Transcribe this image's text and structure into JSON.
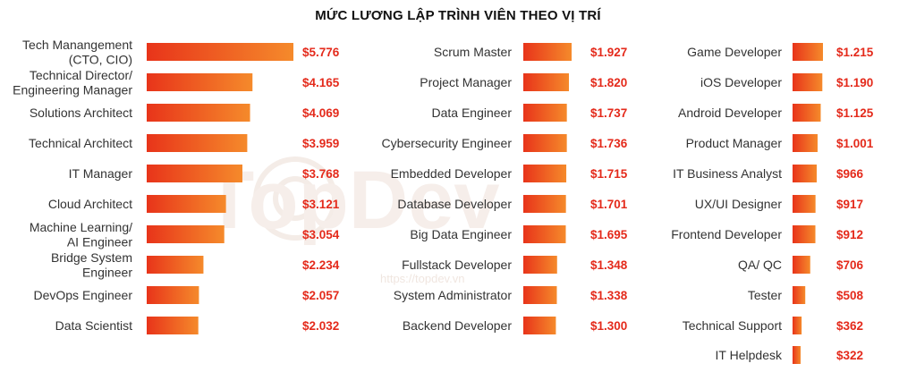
{
  "title": "MỨC LƯƠNG LẬP TRÌNH VIÊN THEO VỊ TRÍ",
  "watermark": {
    "brand": "TopDev",
    "url": "https://topdev.vn"
  },
  "colors": {
    "bar_start": "#e8341a",
    "bar_end": "#f58a2b",
    "value": "#e42a1b",
    "label": "#333333"
  },
  "chart_data": [
    {
      "type": "bar",
      "orientation": "horizontal",
      "categories": [
        [
          "Tech Manangement",
          "(CTO, CIO)"
        ],
        [
          "Technical Director/",
          "Engineering Manager"
        ],
        [
          "Solutions Architect"
        ],
        [
          "Technical Architect"
        ],
        [
          "IT Manager"
        ],
        [
          "Cloud Architect"
        ],
        [
          "Machine Learning/",
          "AI Engineer"
        ],
        [
          "Bridge System",
          "Engineer"
        ],
        [
          "DevOps Engineer"
        ],
        [
          "Data Scientist"
        ]
      ],
      "values": [
        5776,
        4165,
        4069,
        3959,
        3768,
        3121,
        3054,
        2234,
        2057,
        2032
      ],
      "value_labels": [
        "$5.776",
        "$4.165",
        "$4.069",
        "$3.959",
        "$3.768",
        "$3.121",
        "$3.054",
        "$2.234",
        "$2.057",
        "$2.032"
      ]
    },
    {
      "type": "bar",
      "orientation": "horizontal",
      "categories": [
        [
          "Scrum Master"
        ],
        [
          "Project Manager"
        ],
        [
          "Data Engineer"
        ],
        [
          "Cybersecurity Engineer"
        ],
        [
          "Embedded Developer"
        ],
        [
          "Database Developer"
        ],
        [
          "Big Data Engineer"
        ],
        [
          "Fullstack Developer"
        ],
        [
          "System Administrator"
        ],
        [
          "Backend Developer"
        ]
      ],
      "values": [
        1927,
        1820,
        1737,
        1736,
        1715,
        1701,
        1695,
        1348,
        1338,
        1300
      ],
      "value_labels": [
        "$1.927",
        "$1.820",
        "$1.737",
        "$1.736",
        "$1.715",
        "$1.701",
        "$1.695",
        "$1.348",
        "$1.338",
        "$1.300"
      ]
    },
    {
      "type": "bar",
      "orientation": "horizontal",
      "categories": [
        [
          "Game Developer"
        ],
        [
          "iOS Developer"
        ],
        [
          "Android Developer"
        ],
        [
          "Product Manager"
        ],
        [
          "IT Business Analyst"
        ],
        [
          "UX/UI Designer"
        ],
        [
          "Frontend Developer"
        ],
        [
          "QA/ QC"
        ],
        [
          "Tester"
        ],
        [
          "Technical Support"
        ],
        [
          "IT Helpdesk"
        ]
      ],
      "values": [
        1215,
        1190,
        1125,
        1001,
        966,
        917,
        912,
        706,
        508,
        362,
        322
      ],
      "value_labels": [
        "$1.215",
        "$1.190",
        "$1.125",
        "$1.001",
        "$966",
        "$917",
        "$912",
        "$706",
        "$508",
        "$362",
        "$322"
      ]
    }
  ]
}
